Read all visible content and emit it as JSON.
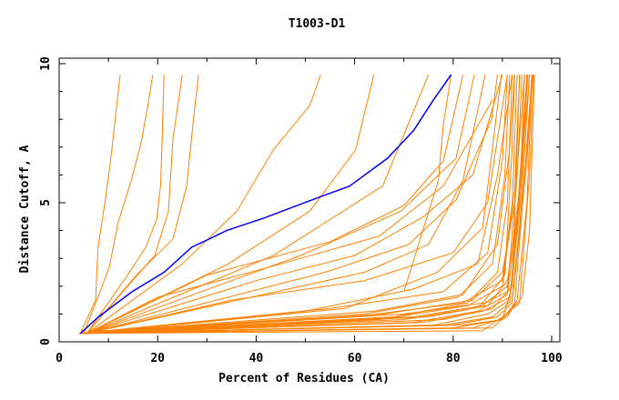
{
  "chart_data": {
    "type": "line",
    "title": "T1003-D1",
    "xlabel": "Percent of Residues (CA)",
    "ylabel": "Distance Cutoff, A",
    "xlim": [
      0,
      100
    ],
    "ylim": [
      0,
      10
    ],
    "xticks": [
      "0",
      "20",
      "40",
      "60",
      "80",
      "100"
    ],
    "yticks": [
      "0",
      "5",
      "10"
    ],
    "grid": false,
    "colors": {
      "highlight": "#0000ff",
      "others": "#ff8000"
    },
    "highlight_series": {
      "points": [
        [
          4.3,
          0.3
        ],
        [
          8,
          0.9
        ],
        [
          14.8,
          1.8
        ],
        [
          21.3,
          2.5
        ],
        [
          26.9,
          3.4
        ],
        [
          30.5,
          3.7
        ],
        [
          34,
          4.0
        ],
        [
          41.6,
          4.45
        ],
        [
          52.8,
          5.2
        ],
        [
          59,
          5.6
        ],
        [
          66.7,
          6.6
        ],
        [
          72,
          7.6
        ],
        [
          76,
          8.7
        ],
        [
          79.6,
          9.6
        ]
      ]
    },
    "series": [
      {
        "points": [
          [
            4.3,
            0.3
          ],
          [
            7.4,
            1.5
          ],
          [
            7.9,
            3.4
          ],
          [
            9.3,
            5
          ],
          [
            10.5,
            6.6
          ],
          [
            11.5,
            8.2
          ],
          [
            12.4,
            9.6
          ]
        ]
      },
      {
        "points": [
          [
            5,
            0.3
          ],
          [
            8.3,
            1.8
          ],
          [
            10.2,
            2.7
          ],
          [
            12,
            4.3
          ],
          [
            14.8,
            5.9
          ],
          [
            16.7,
            7.2
          ],
          [
            18,
            8.5
          ],
          [
            19,
            9.6
          ]
        ]
      },
      {
        "points": [
          [
            5.6,
            0.3
          ],
          [
            13.9,
            2.4
          ],
          [
            17.6,
            3.4
          ],
          [
            19.8,
            4.4
          ],
          [
            20.6,
            5.6
          ],
          [
            20.9,
            7.2
          ],
          [
            21.3,
            9.6
          ]
        ]
      },
      {
        "points": [
          [
            5.6,
            0.3
          ],
          [
            15.7,
            2.4
          ],
          [
            23.1,
            3.7
          ],
          [
            25.9,
            5.6
          ],
          [
            27.2,
            7.9
          ],
          [
            28.3,
            9.6
          ]
        ]
      },
      {
        "points": [
          [
            5.6,
            0.3
          ],
          [
            13.9,
            2
          ],
          [
            19.4,
            3.1
          ],
          [
            22.2,
            4.7
          ],
          [
            23.1,
            7.3
          ],
          [
            25,
            9.6
          ]
        ]
      },
      {
        "points": [
          [
            5.6,
            0.3
          ],
          [
            25,
            2.8
          ],
          [
            36.1,
            4.7
          ],
          [
            43.5,
            6.9
          ],
          [
            50.9,
            8.5
          ],
          [
            53.1,
            9.6
          ]
        ]
      },
      {
        "points": [
          [
            5.6,
            0.3
          ],
          [
            34.3,
            2.8
          ],
          [
            50.9,
            4.7
          ],
          [
            60.2,
            6.9
          ],
          [
            63.9,
            9.6
          ]
        ]
      },
      {
        "points": [
          [
            5.6,
            0.3
          ],
          [
            43.5,
            3.1
          ],
          [
            65.7,
            5.6
          ],
          [
            75,
            9.6
          ]
        ]
      },
      {
        "points": [
          [
            5.6,
            0.3
          ],
          [
            49,
            3.1
          ],
          [
            69.4,
            4.7
          ],
          [
            80.6,
            6.6
          ],
          [
            84.3,
            9.6
          ]
        ]
      },
      {
        "points": [
          [
            5.6,
            0.3
          ],
          [
            54,
            2.5
          ],
          [
            71,
            3.5
          ],
          [
            80.6,
            5.1
          ],
          [
            87.8,
            8
          ],
          [
            89,
            9.6
          ]
        ]
      },
      {
        "points": [
          [
            5.6,
            0.3
          ],
          [
            62,
            2.5
          ],
          [
            75,
            3.5
          ],
          [
            82,
            5.8
          ],
          [
            86.5,
            9.6
          ]
        ]
      },
      {
        "points": [
          [
            5.6,
            0.3
          ],
          [
            58,
            1.2
          ],
          [
            76.8,
            2.5
          ],
          [
            86,
            4.1
          ],
          [
            88.9,
            8.3
          ],
          [
            89.8,
            9.6
          ]
        ]
      },
      {
        "points": [
          [
            70,
            1.8
          ],
          [
            77,
            5.8
          ],
          [
            78,
            7.8
          ],
          [
            79.6,
            9.6
          ]
        ]
      },
      {
        "points": [
          [
            5.6,
            0.3
          ],
          [
            30,
            2.4
          ],
          [
            55,
            3.6
          ],
          [
            70,
            4.9
          ],
          [
            78,
            6.5
          ],
          [
            82,
            9.6
          ]
        ]
      },
      {
        "points": [
          [
            5.6,
            0.3
          ],
          [
            40,
            2.2
          ],
          [
            60,
            3.1
          ],
          [
            74,
            4.5
          ],
          [
            84,
            6
          ],
          [
            90,
            9.6
          ]
        ]
      },
      {
        "points": [
          [
            5.6,
            0.3
          ],
          [
            20,
            1.6
          ],
          [
            45,
            2.8
          ],
          [
            65,
            3.8
          ],
          [
            78,
            5.6
          ],
          [
            88,
            8.7
          ]
        ]
      },
      {
        "points": [
          [
            5.6,
            0.3
          ],
          [
            35,
            1.5
          ],
          [
            62,
            2.2
          ],
          [
            80,
            3.2
          ],
          [
            87,
            5
          ],
          [
            91,
            9.6
          ]
        ]
      },
      {
        "points": [
          [
            5.6,
            0.3
          ],
          [
            50,
            1.1
          ],
          [
            72,
            1.9
          ],
          [
            85,
            2.8
          ],
          [
            89,
            6
          ],
          [
            92,
            9.6
          ]
        ]
      },
      {
        "points": [
          [
            4,
            0.3
          ],
          [
            60,
            0.9
          ],
          [
            82,
            1.4
          ],
          [
            90,
            2.2
          ],
          [
            92,
            5
          ],
          [
            93,
            9.6
          ]
        ]
      },
      {
        "points": [
          [
            4,
            0.3
          ],
          [
            65,
            0.8
          ],
          [
            83,
            1.3
          ],
          [
            90,
            2
          ],
          [
            92.5,
            5.5
          ],
          [
            93.5,
            9.6
          ]
        ]
      },
      {
        "points": [
          [
            4,
            0.3
          ],
          [
            70,
            0.8
          ],
          [
            84,
            1.2
          ],
          [
            91,
            1.8
          ],
          [
            93,
            6
          ],
          [
            94,
            9.6
          ]
        ]
      },
      {
        "points": [
          [
            4,
            0.3
          ],
          [
            72,
            0.7
          ],
          [
            85,
            1.1
          ],
          [
            91,
            1.7
          ],
          [
            93.5,
            5
          ],
          [
            94.5,
            9.6
          ]
        ]
      },
      {
        "points": [
          [
            4,
            0.3
          ],
          [
            74,
            0.7
          ],
          [
            86,
            1.1
          ],
          [
            91.5,
            1.6
          ],
          [
            94,
            6
          ],
          [
            95,
            9.6
          ]
        ]
      },
      {
        "points": [
          [
            4,
            0.3
          ],
          [
            76,
            0.6
          ],
          [
            87,
            1.0
          ],
          [
            91.5,
            1.5
          ],
          [
            94,
            5.5
          ],
          [
            95.5,
            9.6
          ]
        ]
      },
      {
        "points": [
          [
            4,
            0.3
          ],
          [
            78,
            0.6
          ],
          [
            88,
            0.9
          ],
          [
            92,
            1.5
          ],
          [
            94.5,
            6
          ],
          [
            96,
            9.6
          ]
        ]
      },
      {
        "points": [
          [
            4,
            0.3
          ],
          [
            80,
            0.6
          ],
          [
            89,
            0.9
          ],
          [
            92,
            1.4
          ],
          [
            95,
            6.5
          ],
          [
            96,
            9.6
          ]
        ]
      },
      {
        "points": [
          [
            4,
            0.3
          ],
          [
            82,
            0.6
          ],
          [
            90,
            0.8
          ],
          [
            92.5,
            1.4
          ],
          [
            95,
            7
          ],
          [
            96.2,
            9.6
          ]
        ]
      },
      {
        "points": [
          [
            4,
            0.3
          ],
          [
            80,
            0.5
          ],
          [
            90,
            0.8
          ],
          [
            92,
            2
          ],
          [
            93,
            7
          ],
          [
            93.5,
            9.6
          ]
        ]
      },
      {
        "points": [
          [
            4,
            0.3
          ],
          [
            68,
            0.9
          ],
          [
            83,
            1.4
          ],
          [
            89,
            2.5
          ],
          [
            91,
            5
          ],
          [
            92,
            9.6
          ]
        ]
      },
      {
        "points": [
          [
            4,
            0.3
          ],
          [
            62,
            1.0
          ],
          [
            81,
            1.6
          ],
          [
            88,
            2.8
          ],
          [
            90.5,
            6
          ],
          [
            91.5,
            9.6
          ]
        ]
      },
      {
        "points": [
          [
            4,
            0.3
          ],
          [
            55,
            1.2
          ],
          [
            78,
            1.8
          ],
          [
            87,
            3.2
          ],
          [
            90,
            6.5
          ],
          [
            91,
            9.6
          ]
        ]
      },
      {
        "points": [
          [
            4,
            0.3
          ],
          [
            84,
            0.5
          ],
          [
            91,
            0.9
          ],
          [
            93,
            1.5
          ],
          [
            95,
            5
          ],
          [
            96,
            9.6
          ]
        ]
      },
      {
        "points": [
          [
            4,
            0.3
          ],
          [
            86,
            0.4
          ],
          [
            90,
            0.9
          ],
          [
            93.5,
            1.4
          ],
          [
            95.5,
            6
          ],
          [
            96.3,
            9.6
          ]
        ]
      },
      {
        "points": [
          [
            4,
            0.3
          ],
          [
            75,
            0.9
          ],
          [
            87,
            1.3
          ],
          [
            91,
            2.2
          ],
          [
            93,
            4.5
          ],
          [
            95,
            9.6
          ]
        ]
      },
      {
        "points": [
          [
            4,
            0.3
          ],
          [
            66,
            1.0
          ],
          [
            84,
            1.5
          ],
          [
            90,
            2.5
          ],
          [
            92.5,
            5
          ],
          [
            94.5,
            9.6
          ]
        ]
      },
      {
        "points": [
          [
            4,
            0.3
          ],
          [
            78,
            0.8
          ],
          [
            88,
            1.2
          ],
          [
            92,
            2.0
          ],
          [
            94,
            6.5
          ],
          [
            95.5,
            9.6
          ]
        ]
      },
      {
        "points": [
          [
            4,
            0.3
          ],
          [
            70,
            1.0
          ],
          [
            86,
            1.4
          ],
          [
            90.5,
            2.4
          ],
          [
            92,
            7
          ],
          [
            92.5,
            9.6
          ]
        ]
      },
      {
        "points": [
          [
            4,
            0.3
          ],
          [
            64,
            1.1
          ],
          [
            82,
            1.7
          ],
          [
            89,
            3.5
          ],
          [
            91.5,
            7
          ],
          [
            92.5,
            9.6
          ]
        ]
      },
      {
        "points": [
          [
            4,
            0.3
          ],
          [
            72,
            0.9
          ],
          [
            86,
            1.3
          ],
          [
            91,
            2.0
          ],
          [
            93.5,
            5.5
          ],
          [
            95.2,
            9.6
          ]
        ]
      },
      {
        "points": [
          [
            4,
            0.3
          ],
          [
            88,
            0.5
          ],
          [
            91,
            1.0
          ],
          [
            94,
            1.6
          ],
          [
            95.5,
            4
          ],
          [
            96.5,
            9.6
          ]
        ]
      }
    ]
  }
}
